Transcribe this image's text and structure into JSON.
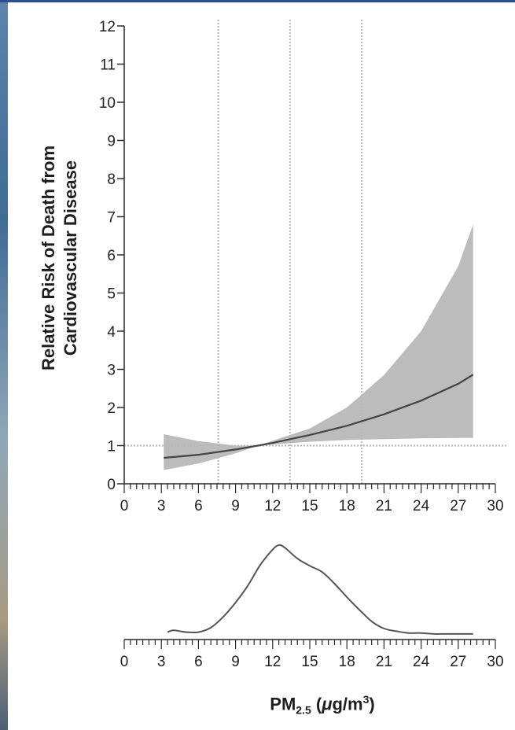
{
  "chart_data": [
    {
      "type": "line",
      "ylabel_line1": "Relative Risk of Death from",
      "ylabel_line2": "Cardiovascular Disease",
      "xlim": [
        0,
        30
      ],
      "ylim": [
        0,
        12
      ],
      "x_ticks": [
        0,
        3,
        6,
        9,
        12,
        15,
        18,
        21,
        24,
        27,
        30
      ],
      "y_ticks": [
        0,
        1,
        2,
        3,
        4,
        5,
        6,
        7,
        8,
        9,
        10,
        11,
        12
      ],
      "reference_lines": {
        "horizontal_y": 1,
        "vertical_x": [
          7.6,
          13.4,
          19.2
        ]
      },
      "series": [
        {
          "x": [
            3.2,
            6,
            9,
            10.8,
            12,
            15,
            18,
            21,
            24,
            27,
            28.2
          ],
          "y": [
            0.68,
            0.76,
            0.9,
            1.0,
            1.07,
            1.28,
            1.52,
            1.82,
            2.18,
            2.62,
            2.86
          ],
          "lower": [
            0.36,
            0.53,
            0.8,
            1.0,
            1.03,
            1.1,
            1.15,
            1.17,
            1.19,
            1.2,
            1.2
          ],
          "upper": [
            1.3,
            1.12,
            1.0,
            1.0,
            1.13,
            1.45,
            2.0,
            2.85,
            4.0,
            5.7,
            6.8
          ]
        }
      ],
      "colors": {
        "band": "#bcbcbc",
        "line": "#444444",
        "reference": "#b8b8b8",
        "axis": "#2a2a2a"
      }
    },
    {
      "type": "area",
      "xlim": [
        0,
        30
      ],
      "x_ticks": [
        0,
        3,
        6,
        9,
        12,
        15,
        18,
        21,
        24,
        27,
        30
      ],
      "series": [
        {
          "x": [
            3.5,
            4,
            5,
            6,
            7,
            8,
            9,
            10,
            11,
            12,
            12.5,
            13,
            14,
            15,
            16,
            17,
            18,
            19,
            20,
            21,
            22,
            23,
            24,
            25,
            26,
            27,
            28.2
          ],
          "y": [
            0.03,
            0.05,
            0.03,
            0.03,
            0.08,
            0.2,
            0.36,
            0.55,
            0.78,
            0.95,
            1.0,
            0.97,
            0.85,
            0.77,
            0.7,
            0.57,
            0.42,
            0.28,
            0.15,
            0.07,
            0.04,
            0.02,
            0.02,
            0.01,
            0.01,
            0.01,
            0.01
          ]
        }
      ],
      "colors": {
        "line": "#555555"
      }
    }
  ],
  "xlabel": {
    "main": "PM",
    "subscript": "2.5",
    "units_open": " (",
    "unit_mu": "μ",
    "unit_rest": "g/m",
    "unit_sup": "3",
    "units_close": ")"
  }
}
